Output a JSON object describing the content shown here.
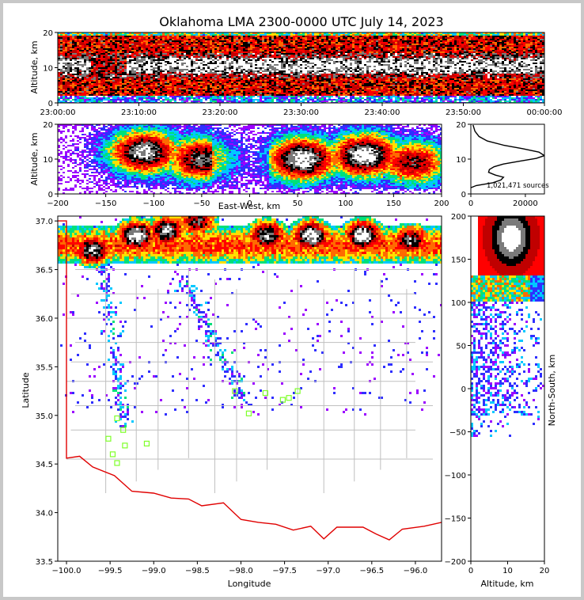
{
  "title": "Oklahoma LMA 2300-0000 UTC July 14, 2023",
  "colors": {
    "background": "#c8c8c8",
    "border": "#e6e6e6",
    "state_line": "#e00000",
    "county_line": "#bfbfbf",
    "station_marker": "#7fff2a",
    "density_scale": [
      "#9b00ff",
      "#2f2fff",
      "#00c8ff",
      "#00e07a",
      "#ffe000",
      "#ff6a00",
      "#ff0000",
      "#c00000",
      "#000000",
      "#7a7a7a",
      "#ffffff"
    ]
  },
  "chart_data": [
    {
      "id": "time_height",
      "type": "heatmap",
      "xlabel": "",
      "ylabel": "Altitude, km",
      "xticks": [
        "23:00:00",
        "23:10:00",
        "23:20:00",
        "23:30:00",
        "23:40:00",
        "23:50:00",
        "00:00:00"
      ],
      "yticks": [
        "0",
        "10",
        "20"
      ],
      "ylim": [
        0,
        20
      ],
      "core_altitude_km": [
        7,
        14
      ],
      "echo_top_km": 20,
      "echo_base_km": 2
    },
    {
      "id": "east_west_height",
      "type": "heatmap",
      "xlabel": "East-West, km",
      "ylabel": "Altitude, km",
      "xlim": [
        -200,
        200
      ],
      "ylim": [
        0,
        20
      ],
      "xticks": [
        "−200",
        "−150",
        "−100",
        "−50",
        "0",
        "50",
        "100",
        "150",
        "200"
      ],
      "yticks": [
        "0",
        "10",
        "20"
      ],
      "cores": [
        {
          "x_km": -110,
          "alt_km": 12,
          "strength": 0.95
        },
        {
          "x_km": -50,
          "alt_km": 10,
          "strength": 0.85
        },
        {
          "x_km": 55,
          "alt_km": 10,
          "strength": 1.0
        },
        {
          "x_km": 120,
          "alt_km": 11,
          "strength": 1.0
        },
        {
          "x_km": 170,
          "alt_km": 9,
          "strength": 0.75
        }
      ]
    },
    {
      "id": "altitude_histogram",
      "type": "line",
      "xlim": [
        0,
        27000
      ],
      "ylim": [
        0,
        20
      ],
      "xticks": [
        "0",
        "20000"
      ],
      "yticks": [
        "0",
        "10",
        "20"
      ],
      "annotation": "1,021,471 sources",
      "series": [
        {
          "x": [
            0,
            2000,
            8000,
            11000,
            12000,
            9000,
            6500,
            6800,
            8500,
            12000,
            18000,
            24000,
            27000,
            25000,
            19000,
            12000,
            6000,
            3000,
            1500,
            800
          ],
          "y": [
            1.8,
            2.4,
            3.2,
            4.0,
            4.8,
            5.4,
            6.2,
            7.0,
            7.8,
            8.6,
            9.4,
            10.2,
            11.0,
            12.0,
            13.0,
            14.0,
            15.2,
            16.5,
            18.0,
            19.8
          ]
        }
      ]
    },
    {
      "id": "plan_view",
      "type": "scatter",
      "xlabel": "Longitude",
      "ylabel": "Latitude",
      "xlim": [
        -100.1,
        -95.7
      ],
      "ylim": [
        33.5,
        37.05
      ],
      "xticks": [
        "−100.0",
        "−99.5",
        "−99.0",
        "−98.5",
        "−98.0",
        "−97.5",
        "−97.0",
        "−96.5",
        "−96.0"
      ],
      "yticks": [
        "33.5",
        "34.0",
        "34.5",
        "35.0",
        "35.5",
        "36.0",
        "36.5",
        "37.0"
      ],
      "storm_cores": [
        {
          "lon": -99.7,
          "lat": 36.7,
          "strength": 0.9
        },
        {
          "lon": -99.2,
          "lat": 36.85,
          "strength": 1.0
        },
        {
          "lon": -98.85,
          "lat": 36.9,
          "strength": 0.9
        },
        {
          "lon": -98.5,
          "lat": 37.0,
          "strength": 0.8
        },
        {
          "lon": -97.7,
          "lat": 36.85,
          "strength": 0.9
        },
        {
          "lon": -97.2,
          "lat": 36.85,
          "strength": 1.0
        },
        {
          "lon": -96.6,
          "lat": 36.85,
          "strength": 1.0
        },
        {
          "lon": -96.05,
          "lat": 36.8,
          "strength": 0.85
        }
      ],
      "stations": [
        {
          "lon": -99.42,
          "lat": 34.97
        },
        {
          "lon": -99.35,
          "lat": 34.85
        },
        {
          "lon": -99.52,
          "lat": 34.76
        },
        {
          "lon": -99.33,
          "lat": 34.69
        },
        {
          "lon": -99.08,
          "lat": 34.71
        },
        {
          "lon": -99.47,
          "lat": 34.6
        },
        {
          "lon": -99.42,
          "lat": 34.51
        },
        {
          "lon": -98.07,
          "lat": 35.25
        },
        {
          "lon": -97.91,
          "lat": 35.02
        },
        {
          "lon": -97.72,
          "lat": 35.23
        },
        {
          "lon": -97.52,
          "lat": 35.16
        },
        {
          "lon": -97.45,
          "lat": 35.18
        },
        {
          "lon": -97.35,
          "lat": 35.25
        }
      ]
    },
    {
      "id": "north_south_height",
      "type": "heatmap",
      "xlabel": "Altitude, km",
      "ylabel": "North-South, km",
      "xlim": [
        0,
        20
      ],
      "ylim": [
        -200,
        200
      ],
      "xticks": [
        "0",
        "10",
        "20"
      ],
      "yticks": [
        "−200",
        "−150",
        "−100",
        "−50",
        "0",
        "50",
        "100",
        "150",
        "200"
      ],
      "core": {
        "alt_km": 11,
        "ns_km": 175
      }
    }
  ]
}
